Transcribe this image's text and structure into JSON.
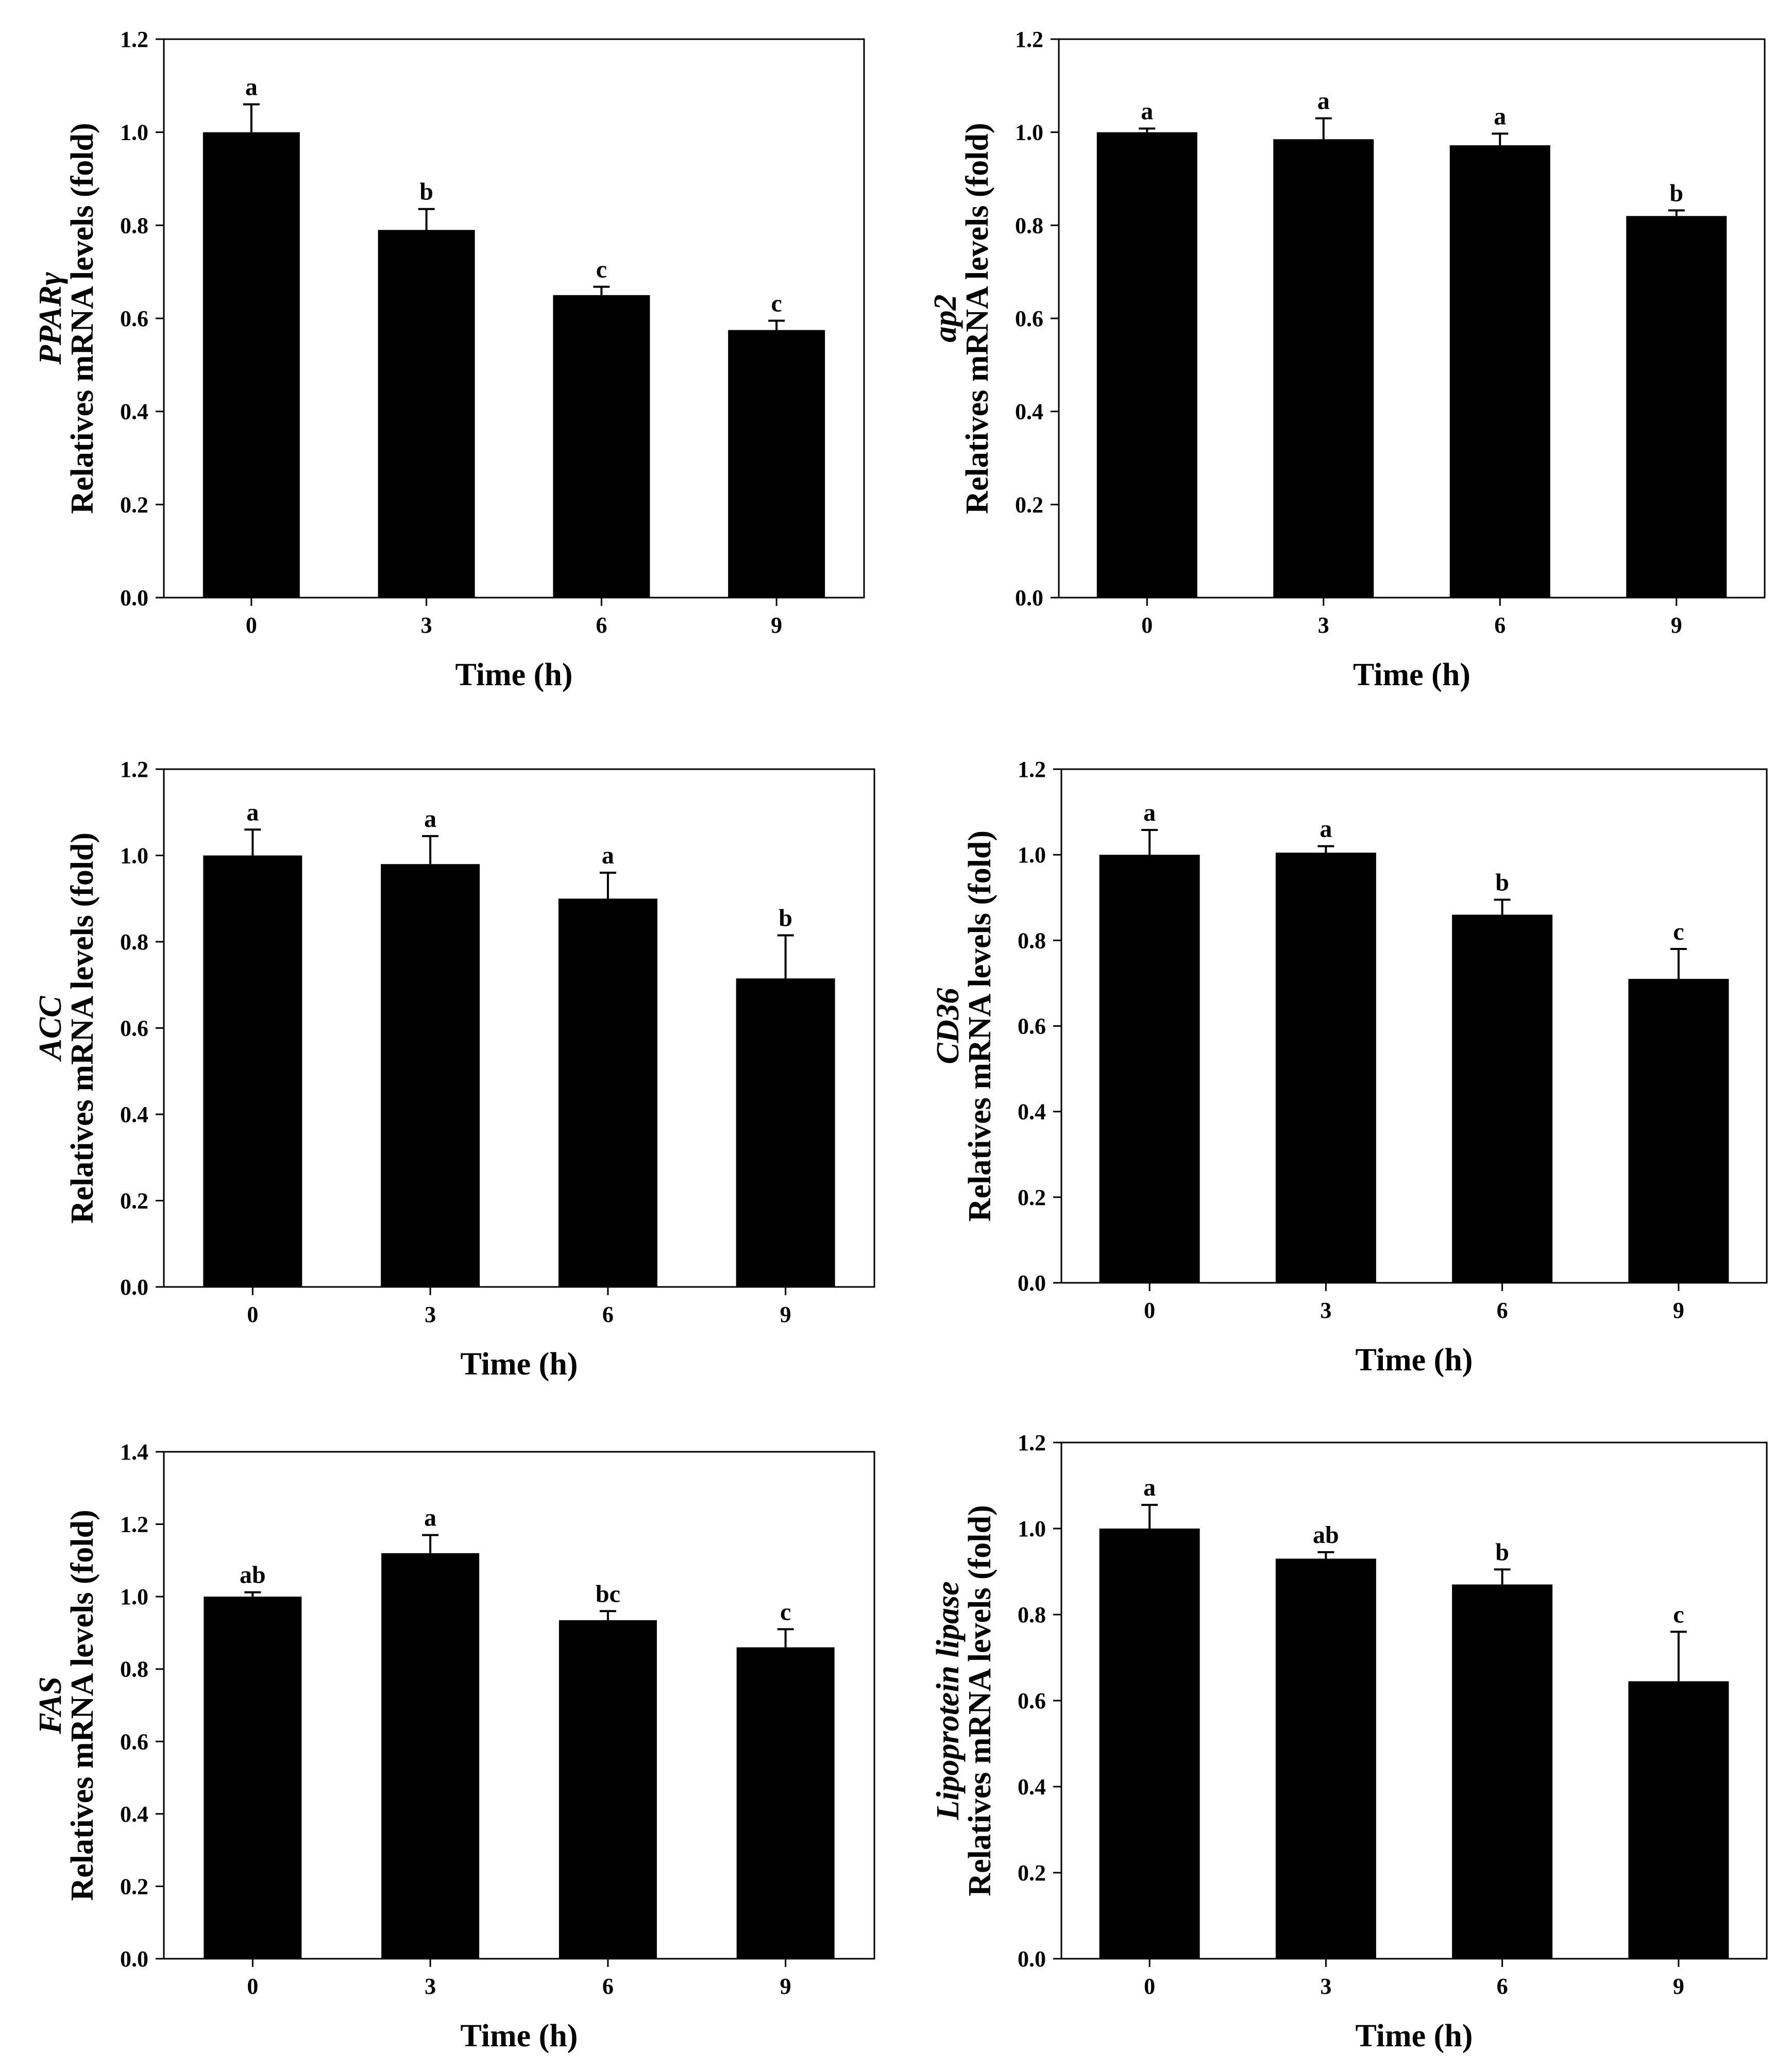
{
  "chart_data": [
    {
      "type": "bar",
      "categories": [
        "0",
        "3",
        "6",
        "9"
      ],
      "values": [
        1.0,
        0.79,
        0.65,
        0.575
      ],
      "errors": [
        0.06,
        0.045,
        0.018,
        0.02
      ],
      "significance": [
        "a",
        "b",
        "c",
        "c"
      ],
      "ylim": [
        0,
        1.2
      ],
      "yticks": [
        "0.0",
        "0.2",
        "0.4",
        "0.6",
        "0.8",
        "1.0",
        "1.2"
      ],
      "ylabel_gene": "PPARγ",
      "ylabel": "Relatives mRNA levels (fold)",
      "xlabel": "Time (h)",
      "colors": {
        "bar": "#000000"
      }
    },
    {
      "type": "bar",
      "categories": [
        "0",
        "3",
        "6",
        "9"
      ],
      "values": [
        1.0,
        0.985,
        0.972,
        0.82
      ],
      "errors": [
        0.008,
        0.045,
        0.025,
        0.012
      ],
      "significance": [
        "a",
        "a",
        "a",
        "b"
      ],
      "ylim": [
        0,
        1.2
      ],
      "yticks": [
        "0.0",
        "0.2",
        "0.4",
        "0.6",
        "0.8",
        "1.0",
        "1.2"
      ],
      "ylabel_gene": "ap2",
      "ylabel": "Relatives mRNA levels (fold)",
      "xlabel": "Time (h)",
      "colors": {
        "bar": "#000000"
      }
    },
    {
      "type": "bar",
      "categories": [
        "0",
        "3",
        "6",
        "9"
      ],
      "values": [
        1.0,
        0.98,
        0.9,
        0.715
      ],
      "errors": [
        0.06,
        0.065,
        0.06,
        0.1
      ],
      "significance": [
        "a",
        "a",
        "a",
        "b"
      ],
      "ylim": [
        0,
        1.2
      ],
      "yticks": [
        "0.0",
        "0.2",
        "0.4",
        "0.6",
        "0.8",
        "1.0",
        "1.2"
      ],
      "ylabel_gene": "ACC",
      "ylabel": "Relatives mRNA levels (fold)",
      "xlabel": "Time (h)",
      "colors": {
        "bar": "#000000"
      }
    },
    {
      "type": "bar",
      "categories": [
        "0",
        "3",
        "6",
        "9"
      ],
      "values": [
        1.0,
        1.005,
        0.86,
        0.71
      ],
      "errors": [
        0.058,
        0.015,
        0.035,
        0.07
      ],
      "significance": [
        "a",
        "a",
        "b",
        "c"
      ],
      "ylim": [
        0,
        1.2
      ],
      "yticks": [
        "0.0",
        "0.2",
        "0.4",
        "0.6",
        "0.8",
        "1.0",
        "1.2"
      ],
      "ylabel_gene": "CD36",
      "ylabel": "Relatives mRNA levels (fold)",
      "xlabel": "Time (h)",
      "colors": {
        "bar": "#000000"
      }
    },
    {
      "type": "bar",
      "categories": [
        "0",
        "3",
        "6",
        "9"
      ],
      "values": [
        1.0,
        1.12,
        0.935,
        0.86
      ],
      "errors": [
        0.012,
        0.05,
        0.025,
        0.05
      ],
      "significance": [
        "ab",
        "a",
        "bc",
        "c"
      ],
      "ylim": [
        0,
        1.4
      ],
      "yticks": [
        "0.0",
        "0.2",
        "0.4",
        "0.6",
        "0.8",
        "1.0",
        "1.2",
        "1.4"
      ],
      "ylabel_gene": "FAS",
      "ylabel": "Relatives mRNA levels (fold)",
      "xlabel": "Time (h)",
      "colors": {
        "bar": "#000000"
      }
    },
    {
      "type": "bar",
      "categories": [
        "0",
        "3",
        "6",
        "9"
      ],
      "values": [
        1.0,
        0.93,
        0.87,
        0.645
      ],
      "errors": [
        0.055,
        0.015,
        0.035,
        0.115
      ],
      "significance": [
        "a",
        "ab",
        "b",
        "c"
      ],
      "ylim": [
        0,
        1.2
      ],
      "yticks": [
        "0.0",
        "0.2",
        "0.4",
        "0.6",
        "0.8",
        "1.0",
        "1.2"
      ],
      "ylabel_gene": "Lipoprotein lipase",
      "ylabel": "Relatives mRNA levels (fold)",
      "xlabel": "Time (h)",
      "colors": {
        "bar": "#000000"
      }
    }
  ]
}
